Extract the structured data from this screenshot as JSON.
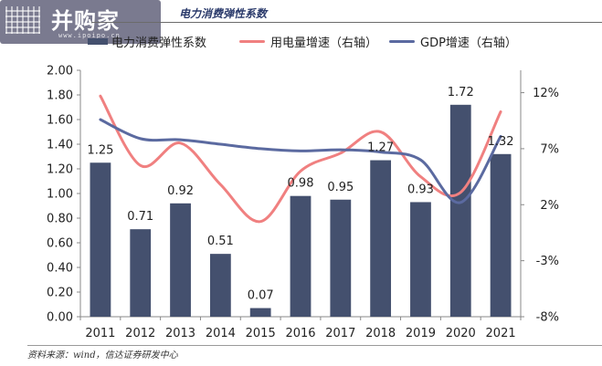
{
  "header": {
    "title": "电力消费弹性系数",
    "logo_text": "并购家",
    "logo_url": "www.ipoipo.cn"
  },
  "footer": {
    "source": "资料来源：wind，信达证券研发中心"
  },
  "legend": {
    "bar": "电力消费弹性系数",
    "line1": "用电量增速（右轴）",
    "line2": "GDP增速（右轴）"
  },
  "colors": {
    "bar": "#44506e",
    "line1": "#f08080",
    "line2": "#5b6aa0"
  },
  "chart_data": {
    "type": "bar",
    "categories": [
      "2011",
      "2012",
      "2013",
      "2014",
      "2015",
      "2016",
      "2017",
      "2018",
      "2019",
      "2020",
      "2021"
    ],
    "series": [
      {
        "name": "电力消费弹性系数",
        "type": "bar",
        "axis": "left",
        "values": [
          1.25,
          0.71,
          0.92,
          0.51,
          0.07,
          0.98,
          0.95,
          1.27,
          0.93,
          1.72,
          1.32
        ]
      },
      {
        "name": "用电量增速（右轴）",
        "type": "line",
        "axis": "right",
        "values": [
          11.7,
          5.5,
          7.5,
          3.8,
          0.5,
          5.0,
          6.6,
          8.5,
          4.5,
          3.1,
          10.3
        ]
      },
      {
        "name": "GDP增速（右轴）",
        "type": "line",
        "axis": "right",
        "values": [
          9.6,
          7.9,
          7.8,
          7.4,
          7.0,
          6.8,
          6.9,
          6.7,
          6.0,
          2.2,
          8.1
        ]
      }
    ],
    "y_left": {
      "min": 0,
      "max": 2.0,
      "ticks": [
        "0.00",
        "0.20",
        "0.40",
        "0.60",
        "0.80",
        "1.00",
        "1.20",
        "1.40",
        "1.60",
        "1.80",
        "2.00"
      ]
    },
    "y_right": {
      "min": -8,
      "max": 14,
      "ticks": [
        "-8%",
        "-3%",
        "2%",
        "7%",
        "12%"
      ]
    },
    "data_labels": [
      "1.25",
      "0.71",
      "0.92",
      "0.51",
      "0.07",
      "0.98",
      "0.95",
      "1.27",
      "0.93",
      "1.72",
      "1.32"
    ],
    "grid": false,
    "legend_position": "top"
  }
}
